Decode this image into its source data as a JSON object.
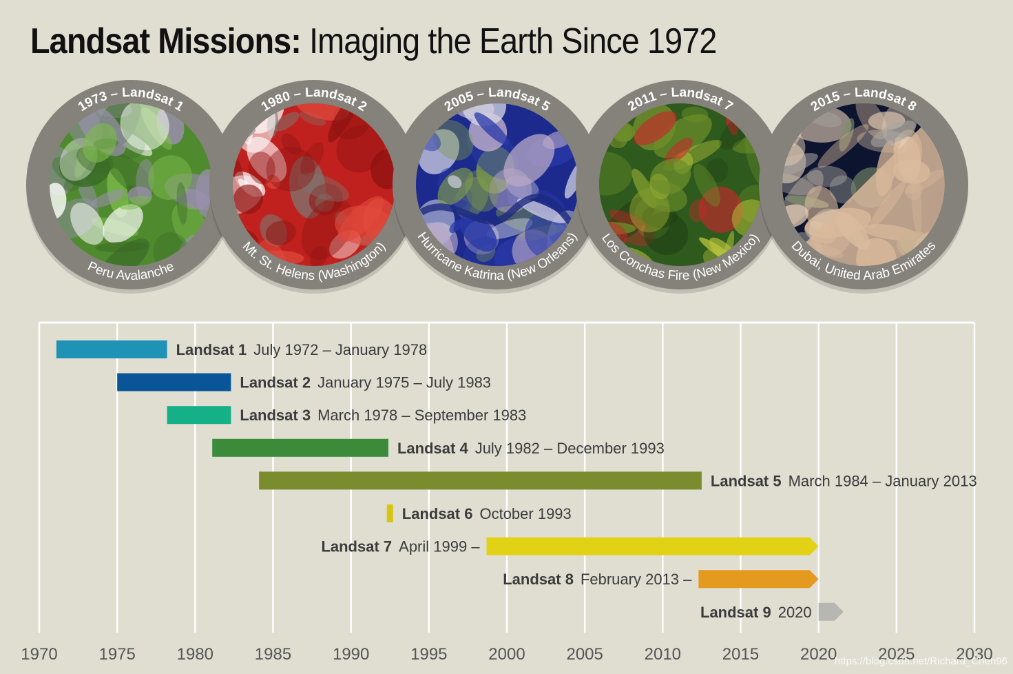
{
  "title": {
    "bold": "Landsat Missions:",
    "rest": " Imaging the Earth Since 1972"
  },
  "missions_images": [
    {
      "top_label": "1973 – Landsat 1",
      "bottom_label": "Peru Avalanche",
      "palette": [
        "#4f8a2f",
        "#7ab848",
        "#3a6b26",
        "#ffffff",
        "#9b8fb0"
      ]
    },
    {
      "top_label": "1980 – Landsat 2",
      "bottom_label": "Mt. St. Helens (Washington)",
      "palette": [
        "#c0211e",
        "#8f1412",
        "#7a7a74",
        "#e04a3c",
        "#ffffff"
      ]
    },
    {
      "top_label": "2005 – Landsat 5",
      "bottom_label": "Hurricane Katrina (New Orleans)",
      "palette": [
        "#1b2a8c",
        "#2a3aa8",
        "#b9a9c6",
        "#7f9a4a",
        "#d8d8e6"
      ]
    },
    {
      "top_label": "2011 – Landsat 7",
      "bottom_label": "Los Conchas Fire (New Mexico)",
      "palette": [
        "#2e5a1e",
        "#1f3f14",
        "#b8c43a",
        "#c9262a",
        "#6e8f2a"
      ]
    },
    {
      "top_label": "2015 – Landsat 8",
      "bottom_label": "Dubai, United Arab Emirates",
      "palette": [
        "#0c1430",
        "#d9b99a",
        "#a9a6a0",
        "#7d8f6a",
        "#e3cdb4"
      ]
    }
  ],
  "colors": {
    "background": "#e0ddd1",
    "ring": "#85827b",
    "grid": "#ffffff",
    "label": "#3b3b3b"
  },
  "chart_data": {
    "type": "bar",
    "orientation": "horizontal",
    "xlim": [
      1970,
      2030
    ],
    "x_ticks": [
      1970,
      1975,
      1980,
      1985,
      1990,
      1995,
      2000,
      2005,
      2010,
      2015,
      2020,
      2025,
      2030
    ],
    "grid": true,
    "series": [
      {
        "name": "Landsat 1",
        "dates": "July 1972 – January 1978",
        "start": 1971.1,
        "end": 1978.2,
        "color": "#1e93b5",
        "ongoing": false,
        "label_side": "right"
      },
      {
        "name": "Landsat 2",
        "dates": "January 1975 – July 1983",
        "start": 1975.0,
        "end": 1982.3,
        "color": "#0a5597",
        "ongoing": false,
        "label_side": "right"
      },
      {
        "name": "Landsat 3",
        "dates": "March 1978 – September 1983",
        "start": 1978.2,
        "end": 1982.3,
        "color": "#15b088",
        "ongoing": false,
        "label_side": "right"
      },
      {
        "name": "Landsat 4",
        "dates": "July 1982 – December 1993",
        "start": 1981.1,
        "end": 1992.4,
        "color": "#3b8b3a",
        "ongoing": false,
        "label_side": "right"
      },
      {
        "name": "Landsat 5",
        "dates": "March 1984 – January 2013",
        "start": 1984.1,
        "end": 2012.5,
        "color": "#7a8c2e",
        "ongoing": false,
        "label_side": "right"
      },
      {
        "name": "Landsat 6",
        "dates": "October 1993",
        "start": 1992.3,
        "end": 1992.7,
        "color": "#d8c414",
        "ongoing": false,
        "label_side": "right"
      },
      {
        "name": "Landsat 7",
        "dates": "April 1999 –",
        "start": 1998.7,
        "end": 2020.0,
        "color": "#e2d216",
        "ongoing": true,
        "label_side": "left"
      },
      {
        "name": "Landsat 8",
        "dates": "February 2013 –",
        "start": 2012.3,
        "end": 2020.0,
        "color": "#e39a1f",
        "ongoing": true,
        "label_side": "left"
      },
      {
        "name": "Landsat 9",
        "dates": "2020",
        "start": 2020.0,
        "end": 2021.6,
        "color": "#b7b7b1",
        "ongoing": true,
        "label_side": "left"
      }
    ]
  },
  "watermark": "https://blog.csdn.net/Richard_Chen96"
}
